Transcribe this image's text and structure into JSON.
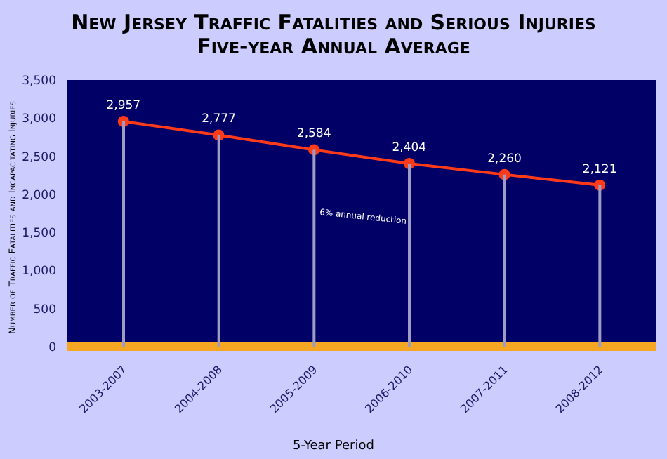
{
  "chart_data": {
    "type": "line",
    "title": "New Jersey Traffic Fatalities and Serious Injuries",
    "subtitle": "Five-year Annual Average",
    "xlabel": "5-Year Period",
    "ylabel": "Number of Traffic Fatalities and Incapacitating Injuries",
    "categories": [
      "2003-2007",
      "2004-2008",
      "2005-2009",
      "2006-2010",
      "2007-2011",
      "2008-2012"
    ],
    "series": [
      {
        "type": "bar",
        "color": "#9c9cc4",
        "values": [
          2957,
          2777,
          2584,
          2404,
          2260,
          2121
        ]
      },
      {
        "color": "#ff3b1a",
        "values": [
          2957,
          2777,
          2584,
          2404,
          2260,
          2121
        ],
        "value_labels": [
          "2,957",
          "2,777",
          "2,584",
          "2,404",
          "2,260",
          "2,121"
        ]
      }
    ],
    "ylim": [
      0,
      3500
    ],
    "yticks": [
      0,
      500,
      {
        "value": 1000,
        "label": "1,000"
      },
      {
        "value": 1500,
        "label": "1,500"
      },
      {
        "value": 2000,
        "label": "2,000"
      },
      {
        "value": 2500,
        "label": "2,500"
      },
      {
        "value": 3000,
        "label": "3,000"
      },
      {
        "value": 3500,
        "label": "3,500"
      }
    ],
    "annotations": [
      "6% annual reduction"
    ],
    "marker": "circle",
    "line_style": "solid",
    "grid": false
  }
}
